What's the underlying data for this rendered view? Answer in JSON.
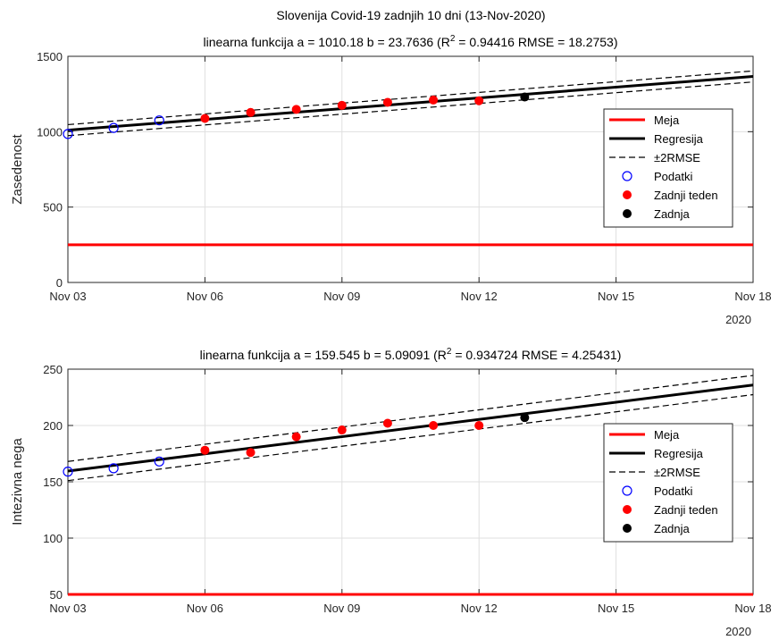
{
  "figure": {
    "title": "Slovenija Covid-19 zadnjih 10 dni (13-Nov-2020)",
    "year_label": "2020"
  },
  "colors": {
    "limit": "#ff0000",
    "regression": "#000000",
    "band": "#000000",
    "data_open": "#0000ff",
    "last_week": "#ff0000",
    "last": "#000000",
    "grid": "#dfdfdf",
    "axis": "#262626"
  },
  "chart_data": [
    {
      "type": "line",
      "subtitle_prefix": "linearna funkcija a =  1010.18 b = 23.7636 (R",
      "subtitle_sup": "2",
      "subtitle_suffix": " = 0.94416  RMSE = 18.2753)",
      "ylabel": "Zasedenost",
      "xlim": [
        0,
        15
      ],
      "ylim": [
        0,
        1500
      ],
      "x_ticks": [
        {
          "value": 0,
          "label": "Nov 03"
        },
        {
          "value": 3,
          "label": "Nov 06"
        },
        {
          "value": 6,
          "label": "Nov 09"
        },
        {
          "value": 9,
          "label": "Nov 12"
        },
        {
          "value": 12,
          "label": "Nov 15"
        },
        {
          "value": 15,
          "label": "Nov 18"
        }
      ],
      "y_ticks": [
        0,
        500,
        1000,
        1500
      ],
      "limit": 250,
      "a": 1010.18,
      "b": 23.7636,
      "rmse": 18.2753,
      "data": [
        {
          "x": 0,
          "y": 985,
          "group": "data"
        },
        {
          "x": 1,
          "y": 1025,
          "group": "data"
        },
        {
          "x": 2,
          "y": 1075,
          "group": "data"
        },
        {
          "x": 3,
          "y": 1088,
          "group": "last_week"
        },
        {
          "x": 4,
          "y": 1128,
          "group": "last_week"
        },
        {
          "x": 5,
          "y": 1148,
          "group": "last_week"
        },
        {
          "x": 6,
          "y": 1175,
          "group": "last_week"
        },
        {
          "x": 7,
          "y": 1195,
          "group": "last_week"
        },
        {
          "x": 8,
          "y": 1210,
          "group": "last_week"
        },
        {
          "x": 9,
          "y": 1205,
          "group": "last_week"
        },
        {
          "x": 10,
          "y": 1230,
          "group": "last"
        }
      ],
      "legend": [
        "Meja",
        "Regresija",
        "±2RMSE",
        "Podatki",
        "Zadnji teden",
        "Zadnja"
      ],
      "grid": true,
      "legend_position": "right"
    },
    {
      "type": "line",
      "subtitle_prefix": "linearna funkcija a =  159.545 b = 5.09091 (R",
      "subtitle_sup": "2",
      "subtitle_suffix": " = 0.934724  RMSE = 4.25431)",
      "ylabel": "Intezivna nega",
      "xlim": [
        0,
        15
      ],
      "ylim": [
        50,
        250
      ],
      "x_ticks": [
        {
          "value": 0,
          "label": "Nov 03"
        },
        {
          "value": 3,
          "label": "Nov 06"
        },
        {
          "value": 6,
          "label": "Nov 09"
        },
        {
          "value": 9,
          "label": "Nov 12"
        },
        {
          "value": 12,
          "label": "Nov 15"
        },
        {
          "value": 15,
          "label": "Nov 18"
        }
      ],
      "y_ticks": [
        50,
        100,
        150,
        200,
        250
      ],
      "limit": 50,
      "a": 159.545,
      "b": 5.09091,
      "rmse": 4.25431,
      "data": [
        {
          "x": 0,
          "y": 159,
          "group": "data"
        },
        {
          "x": 1,
          "y": 162,
          "group": "data"
        },
        {
          "x": 2,
          "y": 168,
          "group": "data"
        },
        {
          "x": 3,
          "y": 178,
          "group": "last_week"
        },
        {
          "x": 4,
          "y": 176,
          "group": "last_week"
        },
        {
          "x": 5,
          "y": 190,
          "group": "last_week"
        },
        {
          "x": 6,
          "y": 196,
          "group": "last_week"
        },
        {
          "x": 7,
          "y": 202,
          "group": "last_week"
        },
        {
          "x": 8,
          "y": 200,
          "group": "last_week"
        },
        {
          "x": 9,
          "y": 200,
          "group": "last_week"
        },
        {
          "x": 10,
          "y": 207,
          "group": "last"
        }
      ],
      "legend": [
        "Meja",
        "Regresija",
        "±2RMSE",
        "Podatki",
        "Zadnji teden",
        "Zadnja"
      ],
      "grid": true,
      "legend_position": "right"
    }
  ]
}
